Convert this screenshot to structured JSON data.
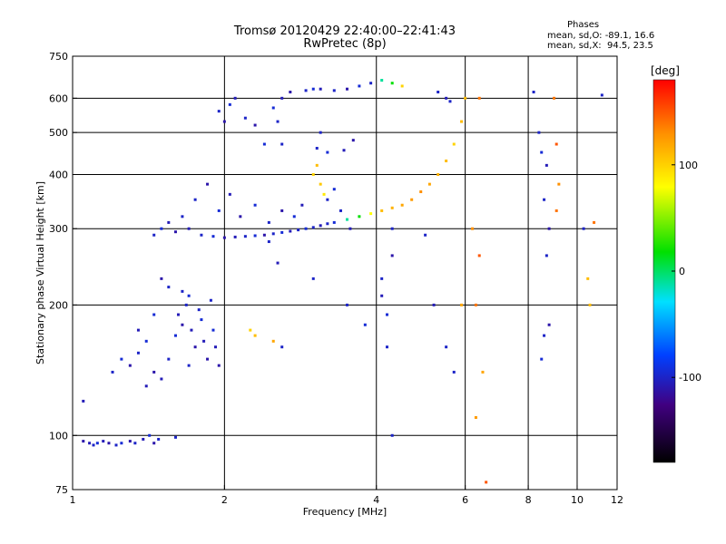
{
  "header": {
    "title_line1": "Tromsø 20120429 22:40:00–22:41:43",
    "title_line2": "RwPretec (8p)",
    "phases_title": "Phases",
    "phases_line1": "mean, sd,O: -89.1, 16.6",
    "phases_line2": "mean, sd,X:  94.5, 23.5"
  },
  "colorbar": {
    "unit_label": "[deg]",
    "tick_labels": [
      "100",
      "0",
      "-100"
    ],
    "tick_values": [
      100,
      0,
      -100
    ],
    "range": [
      -180,
      180
    ]
  },
  "chart_data": {
    "type": "scatter",
    "title": "Tromsø 20120429 22:40:00–22:41:43",
    "subtitle": "RwPretec (8p)",
    "xlabel": "Frequency [MHz]",
    "ylabel": "Stationary phase Virtual Height [km]",
    "xscale": "log",
    "yscale": "log",
    "xlim": [
      1,
      12
    ],
    "ylim": [
      75,
      750
    ],
    "grid": true,
    "xticks": [
      1,
      2,
      4,
      6,
      8,
      10,
      12
    ],
    "xtick_labels": [
      "1",
      "2",
      "4",
      "6",
      "8",
      "10",
      "12"
    ],
    "yticks": [
      75,
      100,
      200,
      300,
      400,
      500,
      600,
      750
    ],
    "ytick_labels": [
      "75",
      "100",
      "200",
      "300",
      "400",
      "500",
      "600",
      "750"
    ],
    "xgrid": [
      2,
      4,
      6,
      8,
      10
    ],
    "ygrid": [
      100,
      200,
      300,
      400,
      500,
      600
    ],
    "series": [
      {
        "points": [
          [
            1.05,
            97,
            -110
          ],
          [
            1.08,
            96,
            -105
          ],
          [
            1.1,
            95,
            -100
          ],
          [
            1.12,
            96,
            -95
          ],
          [
            1.15,
            97,
            -105
          ],
          [
            1.18,
            96,
            -110
          ],
          [
            1.22,
            95,
            -100
          ],
          [
            1.25,
            96,
            -95
          ],
          [
            1.3,
            97,
            -110
          ],
          [
            1.33,
            96,
            -100
          ],
          [
            1.38,
            98,
            -105
          ],
          [
            1.42,
            100,
            -95
          ],
          [
            1.45,
            96,
            -110
          ],
          [
            1.48,
            98,
            -100
          ],
          [
            1.6,
            99,
            -100
          ],
          [
            1.05,
            120,
            -105
          ],
          [
            1.2,
            140,
            -100
          ],
          [
            1.25,
            150,
            -95
          ],
          [
            1.3,
            145,
            -110
          ],
          [
            1.35,
            155,
            -100
          ],
          [
            1.4,
            165,
            -95
          ],
          [
            1.45,
            140,
            -110
          ],
          [
            1.5,
            135,
            -105
          ],
          [
            1.55,
            150,
            -100
          ],
          [
            1.6,
            170,
            -95
          ],
          [
            1.62,
            190,
            -105
          ],
          [
            1.65,
            180,
            -110
          ],
          [
            1.68,
            200,
            -100
          ],
          [
            1.7,
            210,
            -95
          ],
          [
            1.72,
            175,
            -105
          ],
          [
            1.75,
            160,
            -110
          ],
          [
            1.78,
            195,
            -100
          ],
          [
            1.8,
            185,
            -95
          ],
          [
            1.82,
            165,
            -105
          ],
          [
            1.85,
            150,
            -110
          ],
          [
            1.88,
            205,
            -100
          ],
          [
            1.9,
            175,
            -95
          ],
          [
            1.92,
            160,
            -105
          ],
          [
            1.95,
            145,
            -110
          ],
          [
            1.55,
            220,
            -100
          ],
          [
            1.45,
            190,
            -95
          ],
          [
            1.35,
            175,
            -105
          ],
          [
            1.5,
            230,
            -110
          ],
          [
            1.65,
            215,
            -100
          ],
          [
            1.7,
            145,
            -100
          ],
          [
            1.4,
            130,
            -105
          ],
          [
            1.45,
            290,
            -100
          ],
          [
            1.5,
            300,
            -95
          ],
          [
            1.6,
            295,
            -110
          ],
          [
            1.7,
            300,
            -105
          ],
          [
            1.8,
            290,
            -100
          ],
          [
            1.9,
            288,
            -95
          ],
          [
            2.0,
            286,
            -110
          ],
          [
            2.1,
            287,
            -105
          ],
          [
            2.2,
            288,
            -100
          ],
          [
            2.3,
            289,
            -95
          ],
          [
            2.4,
            290,
            -110
          ],
          [
            2.5,
            292,
            -100
          ],
          [
            2.6,
            294,
            -95
          ],
          [
            2.7,
            296,
            -105
          ],
          [
            2.8,
            298,
            -100
          ],
          [
            2.9,
            300,
            -95
          ],
          [
            3.0,
            302,
            -100
          ],
          [
            3.1,
            305,
            -105
          ],
          [
            3.2,
            308,
            -100
          ],
          [
            3.3,
            310,
            -95
          ],
          [
            3.5,
            315,
            -10
          ],
          [
            3.7,
            320,
            20
          ],
          [
            3.9,
            325,
            80
          ],
          [
            4.1,
            330,
            110
          ],
          [
            4.3,
            335,
            115
          ],
          [
            4.5,
            340,
            120
          ],
          [
            4.7,
            350,
            125
          ],
          [
            4.9,
            365,
            130
          ],
          [
            5.1,
            380,
            120
          ],
          [
            5.3,
            400,
            115
          ],
          [
            5.5,
            430,
            110
          ],
          [
            5.7,
            470,
            100
          ],
          [
            5.9,
            530,
            110
          ],
          [
            6.0,
            600,
            110
          ],
          [
            6.4,
            600,
            140
          ],
          [
            1.75,
            350,
            -100
          ],
          [
            1.85,
            380,
            -110
          ],
          [
            1.95,
            330,
            -95
          ],
          [
            2.05,
            360,
            -105
          ],
          [
            1.65,
            320,
            -100
          ],
          [
            2.15,
            320,
            -110
          ],
          [
            2.3,
            340,
            -95
          ],
          [
            1.55,
            310,
            -105
          ],
          [
            2.45,
            310,
            -100
          ],
          [
            2.6,
            330,
            -110
          ],
          [
            2.75,
            320,
            -95
          ],
          [
            2.85,
            340,
            -105
          ],
          [
            3.0,
            400,
            100
          ],
          [
            3.05,
            420,
            110
          ],
          [
            3.1,
            380,
            105
          ],
          [
            3.15,
            360,
            90
          ],
          [
            3.2,
            350,
            -100
          ],
          [
            3.3,
            370,
            -95
          ],
          [
            3.4,
            330,
            -100
          ],
          [
            3.55,
            300,
            -105
          ],
          [
            1.95,
            560,
            -100
          ],
          [
            2.0,
            530,
            -110
          ],
          [
            2.05,
            580,
            -95
          ],
          [
            2.1,
            600,
            -105
          ],
          [
            2.2,
            540,
            -100
          ],
          [
            2.3,
            520,
            -110
          ],
          [
            2.5,
            570,
            -95
          ],
          [
            2.55,
            530,
            -100
          ],
          [
            2.6,
            600,
            -105
          ],
          [
            2.7,
            620,
            -110
          ],
          [
            2.9,
            625,
            -100
          ],
          [
            3.0,
            630,
            -95
          ],
          [
            3.1,
            630,
            -105
          ],
          [
            3.3,
            625,
            -100
          ],
          [
            3.5,
            630,
            -110
          ],
          [
            3.7,
            640,
            -95
          ],
          [
            3.9,
            650,
            -100
          ],
          [
            4.1,
            660,
            -10
          ],
          [
            4.3,
            650,
            20
          ],
          [
            4.5,
            640,
            100
          ],
          [
            5.3,
            620,
            -100
          ],
          [
            5.5,
            600,
            -105
          ],
          [
            5.6,
            590,
            -100
          ],
          [
            3.05,
            460,
            -100
          ],
          [
            3.2,
            450,
            -95
          ],
          [
            3.45,
            455,
            -105
          ],
          [
            3.1,
            500,
            -100
          ],
          [
            3.6,
            480,
            -110
          ],
          [
            2.4,
            470,
            -95
          ],
          [
            2.6,
            470,
            -100
          ],
          [
            2.3,
            170,
            110
          ],
          [
            2.5,
            165,
            120
          ],
          [
            2.25,
            175,
            100
          ],
          [
            2.6,
            160,
            -100
          ],
          [
            2.45,
            280,
            -100
          ],
          [
            2.55,
            250,
            -105
          ],
          [
            3.0,
            230,
            -100
          ],
          [
            3.5,
            200,
            -100
          ],
          [
            3.8,
            180,
            -95
          ],
          [
            4.1,
            230,
            -100
          ],
          [
            4.1,
            210,
            -105
          ],
          [
            4.3,
            300,
            -100
          ],
          [
            4.3,
            260,
            -110
          ],
          [
            4.2,
            190,
            -95
          ],
          [
            4.2,
            160,
            -100
          ],
          [
            4.3,
            100,
            -100
          ],
          [
            5.0,
            290,
            -100
          ],
          [
            5.2,
            200,
            -105
          ],
          [
            5.5,
            160,
            -100
          ],
          [
            5.7,
            140,
            -100
          ],
          [
            5.9,
            200,
            120
          ],
          [
            6.2,
            300,
            130
          ],
          [
            6.3,
            200,
            140
          ],
          [
            6.4,
            260,
            150
          ],
          [
            6.5,
            140,
            120
          ],
          [
            6.3,
            110,
            125
          ],
          [
            6.6,
            78,
            150
          ],
          [
            8.2,
            620,
            -100
          ],
          [
            8.4,
            500,
            -100
          ],
          [
            8.5,
            450,
            -95
          ],
          [
            8.6,
            350,
            -100
          ],
          [
            8.7,
            420,
            -105
          ],
          [
            8.8,
            300,
            -110
          ],
          [
            8.7,
            260,
            -100
          ],
          [
            8.6,
            170,
            -100
          ],
          [
            8.5,
            150,
            -95
          ],
          [
            8.8,
            180,
            -110
          ],
          [
            9.0,
            600,
            140
          ],
          [
            9.1,
            470,
            150
          ],
          [
            9.2,
            380,
            130
          ],
          [
            9.1,
            330,
            140
          ],
          [
            10.3,
            300,
            -100
          ],
          [
            10.5,
            230,
            110
          ],
          [
            10.6,
            200,
            110
          ],
          [
            10.8,
            310,
            140
          ],
          [
            11.2,
            610,
            -100
          ]
        ]
      }
    ]
  }
}
